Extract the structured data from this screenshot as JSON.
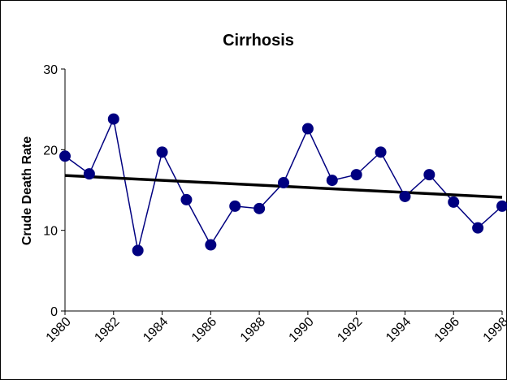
{
  "chart_data": {
    "type": "line",
    "title": "Cirrhosis",
    "y_label": "Crude Death Rate",
    "x": [
      1980,
      1981,
      1982,
      1983,
      1984,
      1985,
      1986,
      1987,
      1988,
      1989,
      1990,
      1991,
      1992,
      1993,
      1994,
      1995,
      1996,
      1997,
      1998
    ],
    "series": [
      {
        "name": "Cirrhosis",
        "color": "#000080",
        "values": [
          19.2,
          17.0,
          23.8,
          7.5,
          19.7,
          13.8,
          8.2,
          13.0,
          12.7,
          15.9,
          22.6,
          16.2,
          16.9,
          19.7,
          14.2,
          16.9,
          13.5,
          10.3,
          13.0
        ]
      }
    ],
    "trendline": {
      "color": "#000000",
      "values": [
        16.8,
        14.1
      ]
    },
    "xlim": [
      1980,
      1998
    ],
    "xticks": [
      1980,
      1982,
      1984,
      1986,
      1988,
      1990,
      1992,
      1994,
      1996,
      1998
    ],
    "ylim": [
      0,
      30
    ],
    "yticks": [
      0,
      10,
      20,
      30
    ],
    "grid": false
  }
}
